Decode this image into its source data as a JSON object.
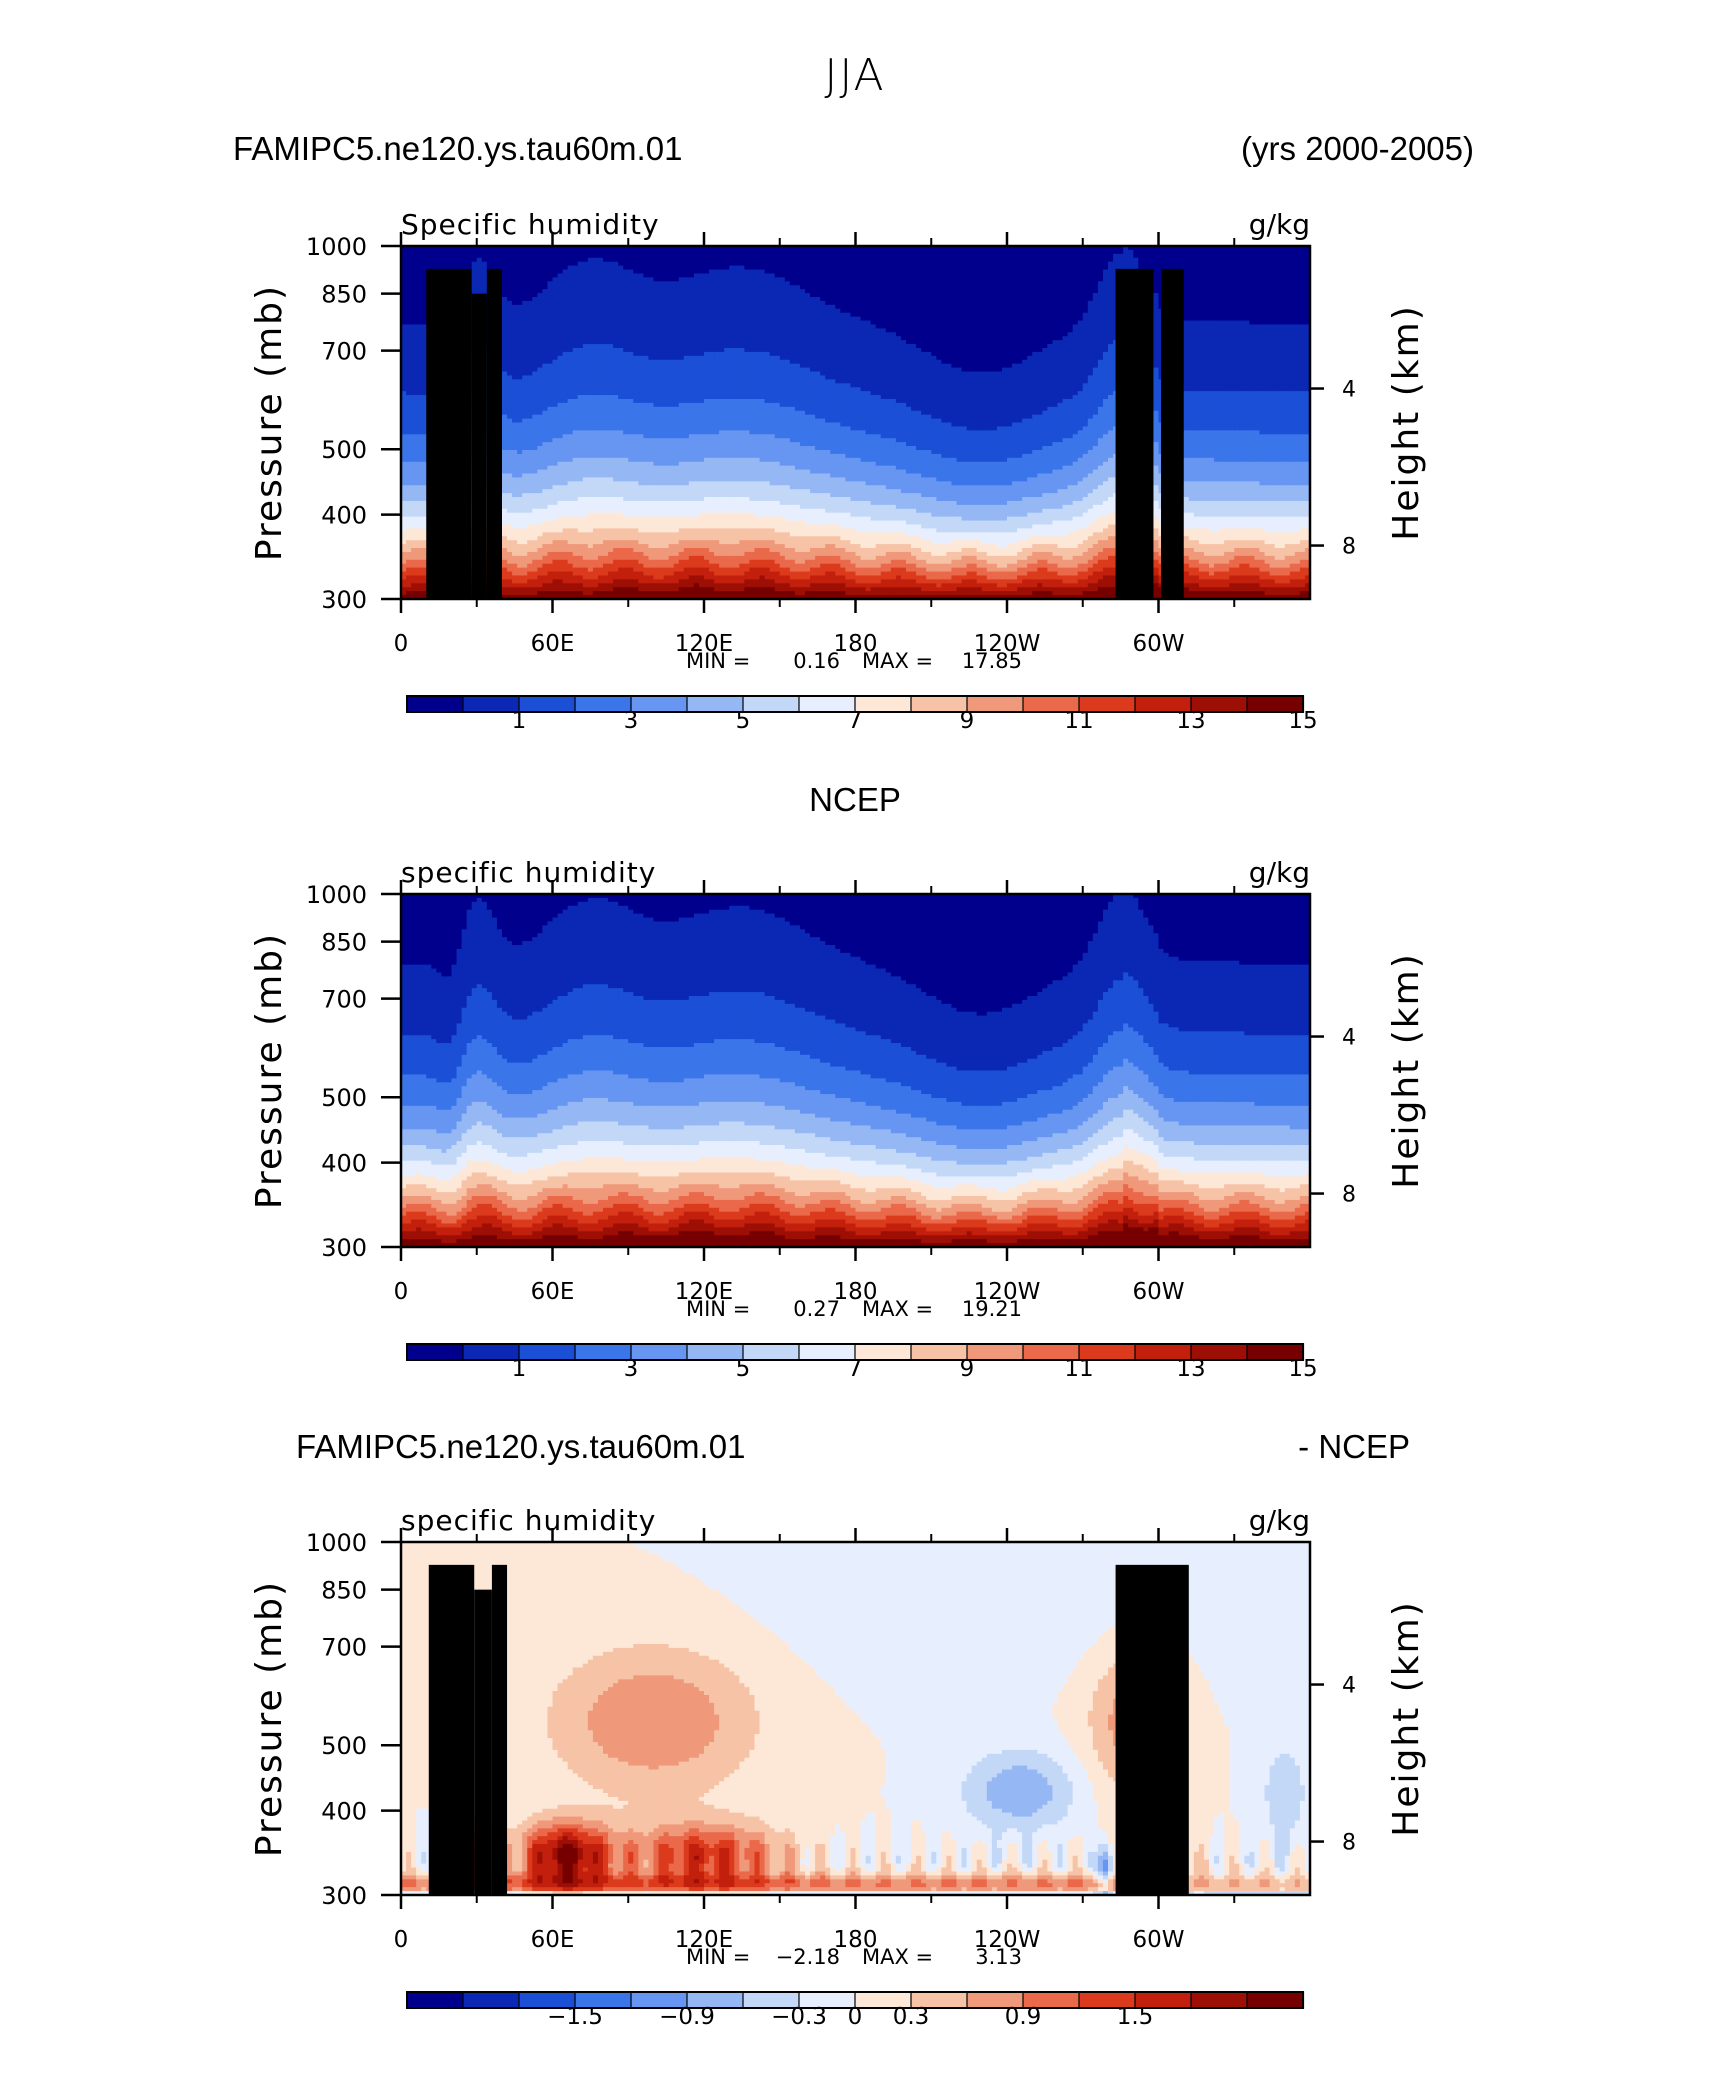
{
  "page": {
    "title": "JJA"
  },
  "chart_data": [
    {
      "id": "model",
      "type": "contour",
      "header_left": "FAMIPC5.ne120.ys.tau60m.01",
      "header_right": "(yrs 2000-2005)",
      "subtitle_left": "Specific humidity",
      "subtitle_right": "g/kg",
      "ylabel": "Pressure (mb)",
      "ylabel_right": "Height (km)",
      "x_ticks": [
        "0",
        "60E",
        "120E",
        "180",
        "120W",
        "60W"
      ],
      "x_tick_lon": [
        0,
        60,
        120,
        180,
        240,
        300
      ],
      "xlim": [
        0,
        360
      ],
      "y_ticks": [
        "300",
        "400",
        "500",
        "700",
        "850",
        "1000"
      ],
      "y_tick_values": [
        300,
        400,
        500,
        700,
        850,
        1000
      ],
      "ylim": [
        1000,
        300
      ],
      "right_ticks": [
        "8",
        "4"
      ],
      "right_tick_pressures": [
        360,
        615
      ],
      "min_label": "MIN =",
      "min_value": "0.16",
      "max_label": "MAX =",
      "max_value": "17.85",
      "colorbar_levels": [
        0,
        1,
        2,
        3,
        4,
        5,
        6,
        7,
        8,
        9,
        10,
        11,
        12,
        13,
        14,
        15
      ],
      "colorbar_labels": [
        "1",
        "3",
        "5",
        "7",
        "9",
        "11",
        "13",
        "15"
      ],
      "colorbar_label_values": [
        1,
        3,
        5,
        7,
        9,
        11,
        13,
        15
      ],
      "colorbar_colors": [
        "#00008c",
        "#0a28b4",
        "#1a4fd6",
        "#3a75ea",
        "#6696f1",
        "#95b8f5",
        "#c3d8f7",
        "#e7efff",
        "#fde8d8",
        "#f7c3a7",
        "#f0987a",
        "#e9694a",
        "#dc3a1c",
        "#c2200d",
        "#9d0e05",
        "#760000"
      ],
      "topography": [
        {
          "lon_start": 10,
          "lon_end": 28,
          "top_pressure": 925
        },
        {
          "lon_start": 28,
          "lon_end": 34,
          "top_pressure": 850
        },
        {
          "lon_start": 34,
          "lon_end": 40,
          "top_pressure": 925
        },
        {
          "lon_start": 283,
          "lon_end": 298,
          "top_pressure": 925
        },
        {
          "lon_start": 301,
          "lon_end": 310,
          "top_pressure": 925
        }
      ]
    },
    {
      "id": "ncep",
      "type": "contour",
      "header_center": "NCEP",
      "subtitle_left": "specific humidity",
      "subtitle_right": "g/kg",
      "ylabel": "Pressure (mb)",
      "ylabel_right": "Height (km)",
      "x_ticks": [
        "0",
        "60E",
        "120E",
        "180",
        "120W",
        "60W"
      ],
      "x_tick_lon": [
        0,
        60,
        120,
        180,
        240,
        300
      ],
      "xlim": [
        0,
        360
      ],
      "y_ticks": [
        "300",
        "400",
        "500",
        "700",
        "850",
        "1000"
      ],
      "y_tick_values": [
        300,
        400,
        500,
        700,
        850,
        1000
      ],
      "ylim": [
        1000,
        300
      ],
      "right_ticks": [
        "8",
        "4"
      ],
      "right_tick_pressures": [
        360,
        615
      ],
      "min_label": "MIN =",
      "min_value": "0.27",
      "max_label": "MAX =",
      "max_value": "19.21",
      "colorbar_levels": [
        0,
        1,
        2,
        3,
        4,
        5,
        6,
        7,
        8,
        9,
        10,
        11,
        12,
        13,
        14,
        15
      ],
      "colorbar_labels": [
        "1",
        "3",
        "5",
        "7",
        "9",
        "11",
        "13",
        "15"
      ],
      "colorbar_label_values": [
        1,
        3,
        5,
        7,
        9,
        11,
        13,
        15
      ],
      "colorbar_colors": [
        "#00008c",
        "#0a28b4",
        "#1a4fd6",
        "#3a75ea",
        "#6696f1",
        "#95b8f5",
        "#c3d8f7",
        "#e7efff",
        "#fde8d8",
        "#f7c3a7",
        "#f0987a",
        "#e9694a",
        "#dc3a1c",
        "#c2200d",
        "#9d0e05",
        "#760000"
      ],
      "topography": []
    },
    {
      "id": "diff",
      "type": "contour",
      "header_left": "FAMIPC5.ne120.ys.tau60m.01",
      "header_right": "- NCEP",
      "subtitle_left": "specific humidity",
      "subtitle_right": "g/kg",
      "ylabel": "Pressure (mb)",
      "ylabel_right": "Height (km)",
      "x_ticks": [
        "0",
        "60E",
        "120E",
        "180",
        "120W",
        "60W"
      ],
      "x_tick_lon": [
        0,
        60,
        120,
        180,
        240,
        300
      ],
      "xlim": [
        0,
        360
      ],
      "y_ticks": [
        "300",
        "400",
        "500",
        "700",
        "850",
        "1000"
      ],
      "y_tick_values": [
        300,
        400,
        500,
        700,
        850,
        1000
      ],
      "ylim": [
        1000,
        300
      ],
      "right_ticks": [
        "8",
        "4"
      ],
      "right_tick_pressures": [
        360,
        615
      ],
      "min_label": "MIN =",
      "min_value": "−2.18",
      "max_label": "MAX =",
      "max_value": "3.13",
      "colorbar_levels": [
        -2.1,
        -1.8,
        -1.5,
        -1.2,
        -0.9,
        -0.6,
        -0.3,
        0,
        0.3,
        0.6,
        0.9,
        1.2,
        1.5,
        1.8,
        2.1,
        2.4
      ],
      "colorbar_labels": [
        "−1.5",
        "−0.9",
        "−0.3",
        "0",
        "0.3",
        "0.9",
        "1.5"
      ],
      "colorbar_label_values": [
        -1.5,
        -0.9,
        -0.3,
        0,
        0.3,
        0.9,
        1.5
      ],
      "colorbar_colors": [
        "#00008c",
        "#0a28b4",
        "#1a4fd6",
        "#3a75ea",
        "#6696f1",
        "#95b8f5",
        "#c3d8f7",
        "#e7efff",
        "#fde8d8",
        "#f7c3a7",
        "#f0987a",
        "#e9694a",
        "#dc3a1c",
        "#c2200d",
        "#9d0e05",
        "#760000"
      ],
      "topography": [
        {
          "lon_start": 11,
          "lon_end": 29,
          "top_pressure": 925
        },
        {
          "lon_start": 29,
          "lon_end": 36,
          "top_pressure": 850
        },
        {
          "lon_start": 36,
          "lon_end": 42,
          "top_pressure": 925
        },
        {
          "lon_start": 283,
          "lon_end": 312,
          "top_pressure": 925
        }
      ]
    }
  ]
}
